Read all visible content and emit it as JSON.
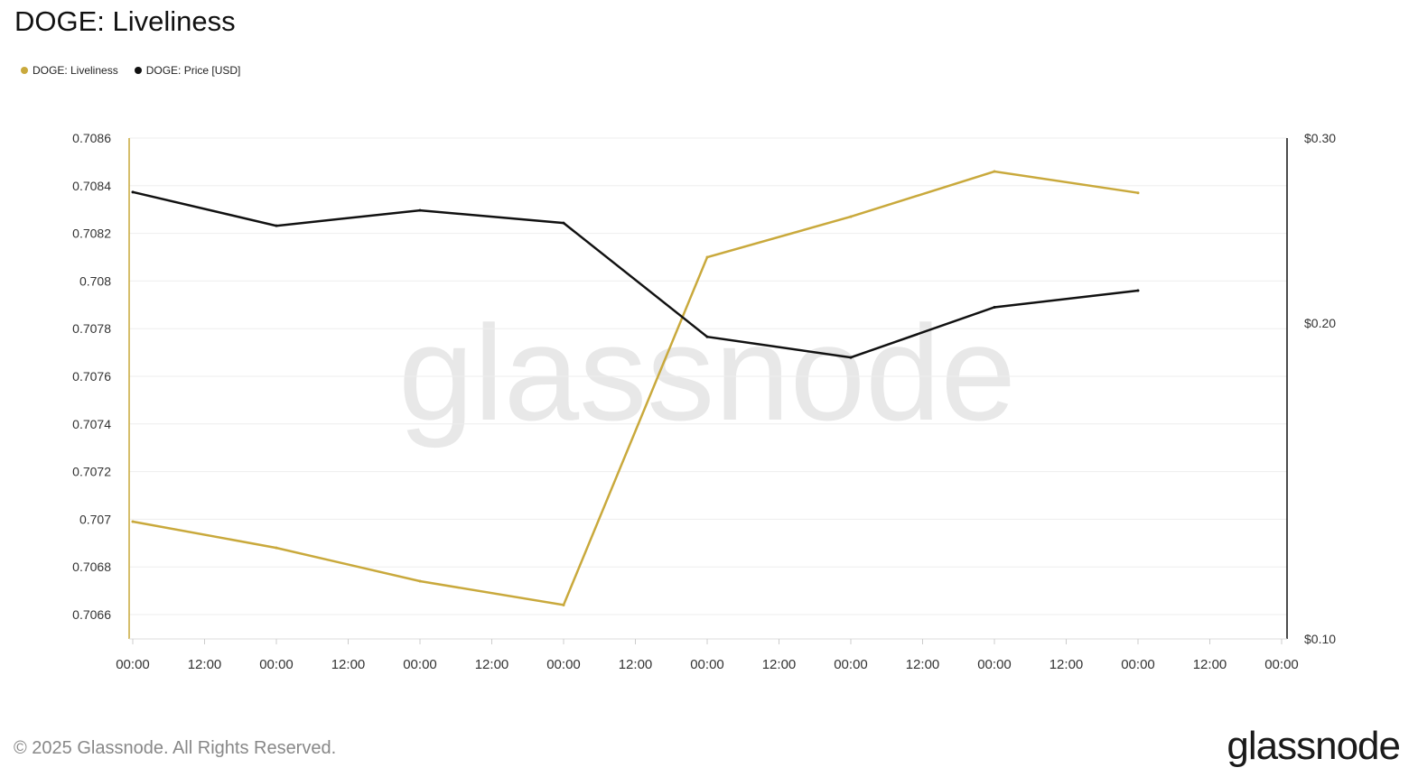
{
  "title": "DOGE: Liveliness",
  "footer": "© 2025 Glassnode. All Rights Reserved.",
  "logo": "glassnode",
  "watermark": "glassnode",
  "chart_data": {
    "type": "line",
    "title": "DOGE: Liveliness",
    "x_tick_labels": [
      "00:00",
      "12:00",
      "00:00",
      "12:00",
      "00:00",
      "12:00",
      "00:00",
      "12:00",
      "00:00",
      "12:00",
      "00:00",
      "12:00",
      "00:00",
      "12:00",
      "00:00",
      "12:00",
      "00:00"
    ],
    "x_index": [
      0,
      1,
      2,
      3,
      4,
      5,
      6,
      7
    ],
    "left_axis": {
      "ticks": [
        "0.7066",
        "0.7068",
        "0.707",
        "0.7072",
        "0.7074",
        "0.7076",
        "0.7078",
        "0.708",
        "0.7082",
        "0.7084",
        "0.7086"
      ],
      "range": [
        0.7065,
        0.7086
      ]
    },
    "right_axis": {
      "ticks": [
        "$0.10",
        "$0.20",
        "$0.30"
      ],
      "range": [
        0.1,
        0.3
      ],
      "scale": "log"
    },
    "grid": true,
    "legend_position": "top-left",
    "series": [
      {
        "name": "DOGE: Liveliness",
        "axis": "left",
        "color": "#c9a93c",
        "values": [
          0.70699,
          0.70688,
          0.70674,
          0.70664,
          0.7081,
          0.70827,
          0.70846,
          0.70837
        ]
      },
      {
        "name": "DOGE: Price [USD]",
        "axis": "right",
        "color": "#111111",
        "values": [
          0.2665,
          0.2475,
          0.256,
          0.249,
          0.194,
          0.1854,
          0.207,
          0.2147
        ]
      }
    ]
  }
}
